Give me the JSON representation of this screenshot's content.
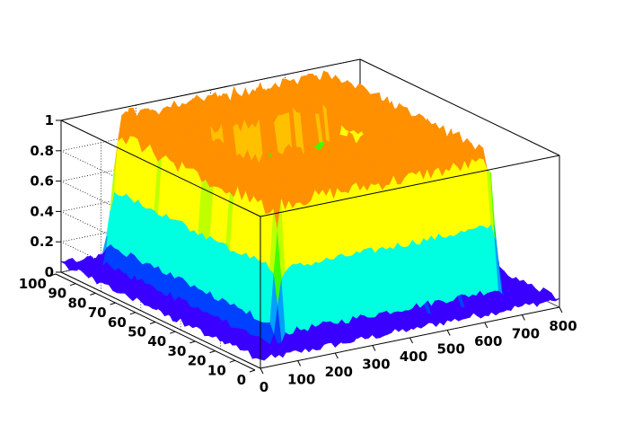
{
  "chart_data": {
    "type": "surface",
    "title": "",
    "xlabel": "",
    "ylabel": "",
    "zlabel": "",
    "xlim": [
      0,
      800
    ],
    "ylim": [
      0,
      100
    ],
    "zlim": [
      0,
      1
    ],
    "x_ticks": [
      "0",
      "100",
      "200",
      "300",
      "400",
      "500",
      "600",
      "700",
      "800"
    ],
    "y_ticks": [
      "0",
      "10",
      "20",
      "30",
      "40",
      "50",
      "60",
      "70",
      "80",
      "90",
      "100"
    ],
    "z_ticks": [
      "0",
      "0.2",
      "0.4",
      "0.6",
      "0.8",
      "1"
    ],
    "grid": true,
    "colormap": [
      "#3a00ff",
      "#0040ff",
      "#00a0ff",
      "#00ffe0",
      "#00ff60",
      "#40ff00",
      "#c0ff00",
      "#ffff00",
      "#ffc000",
      "#ff9000"
    ],
    "surface": {
      "description_of_structure": "rectangular ring plateau",
      "baseline": 0.05,
      "plateau": 1.0,
      "ring_x_ranges": [
        [
          100,
          220
        ],
        [
          560,
          690
        ]
      ],
      "ring_y_ranges": [
        [
          10,
          45
        ],
        [
          65,
          95
        ]
      ],
      "ring_x_extent": [
        100,
        690
      ],
      "ring_y_extent": [
        10,
        95
      ],
      "noise_amplitude": 0.06
    }
  }
}
